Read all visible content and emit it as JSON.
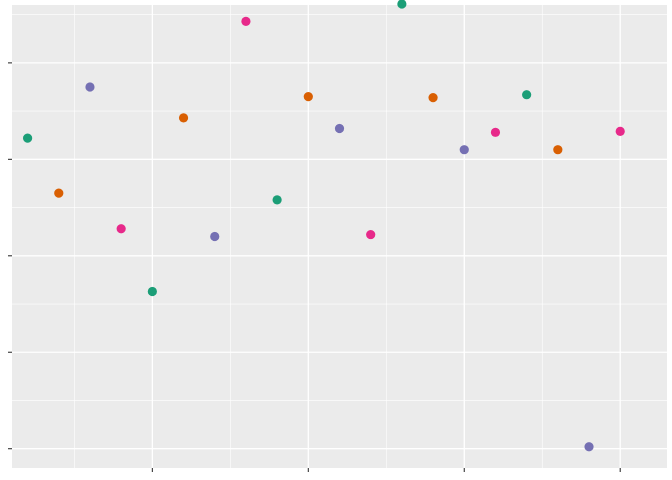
{
  "chart_data": {
    "type": "scatter",
    "title": "",
    "xlabel": "",
    "ylabel": "",
    "xlim": [
      0.5,
      21.5
    ],
    "ylim": [
      -0.2,
      4.6
    ],
    "x_major_ticks": [
      5,
      10,
      15,
      20
    ],
    "x_minor_ticks": [
      2.5,
      7.5,
      12.5,
      17.5
    ],
    "y_major_ticks": [
      0,
      1,
      2,
      3,
      4
    ],
    "y_minor_ticks": [
      0.5,
      1.5,
      2.5,
      3.5,
      4.5
    ],
    "tick_labels_shown": false,
    "grid": true,
    "legend": "none",
    "colors": {
      "panel_background": "#EBEBEB",
      "grid": "#FFFFFF",
      "tick": "#333333"
    },
    "points": [
      {
        "x": 1,
        "y": 3.22,
        "color": "#1B9E77"
      },
      {
        "x": 2,
        "y": 2.65,
        "color": "#D95F02"
      },
      {
        "x": 3,
        "y": 3.75,
        "color": "#7570B3"
      },
      {
        "x": 4,
        "y": 2.28,
        "color": "#E7298A"
      },
      {
        "x": 5,
        "y": 1.63,
        "color": "#1B9E77"
      },
      {
        "x": 6,
        "y": 3.43,
        "color": "#D95F02"
      },
      {
        "x": 7,
        "y": 2.2,
        "color": "#7570B3"
      },
      {
        "x": 8,
        "y": 4.43,
        "color": "#E7298A"
      },
      {
        "x": 9,
        "y": 2.58,
        "color": "#1B9E77"
      },
      {
        "x": 10,
        "y": 3.65,
        "color": "#D95F02"
      },
      {
        "x": 11,
        "y": 3.32,
        "color": "#7570B3"
      },
      {
        "x": 12,
        "y": 2.22,
        "color": "#E7298A"
      },
      {
        "x": 13,
        "y": 4.61,
        "color": "#1B9E77"
      },
      {
        "x": 14,
        "y": 3.64,
        "color": "#D95F02"
      },
      {
        "x": 15,
        "y": 3.1,
        "color": "#7570B3"
      },
      {
        "x": 16,
        "y": 3.28,
        "color": "#E7298A"
      },
      {
        "x": 17,
        "y": 3.67,
        "color": "#1B9E77"
      },
      {
        "x": 18,
        "y": 3.1,
        "color": "#D95F02"
      },
      {
        "x": 19,
        "y": 0.02,
        "color": "#7570B3"
      },
      {
        "x": 20,
        "y": 3.29,
        "color": "#E7298A"
      }
    ]
  }
}
